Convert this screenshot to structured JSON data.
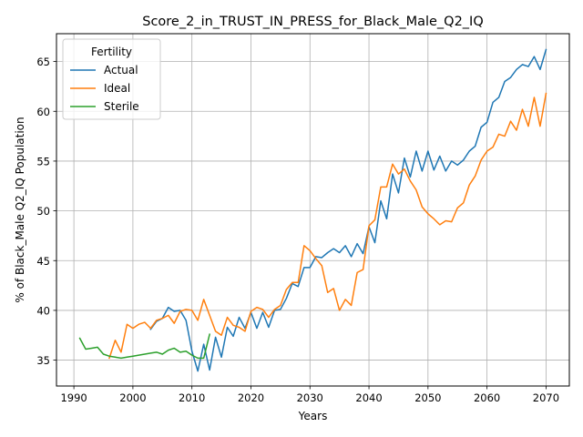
{
  "chart_data": {
    "type": "line",
    "title": "Score_2_in_TRUST_IN_PRESS_for_Black_Male_Q2_IQ",
    "xlabel": "Years",
    "ylabel": "% of Black_Male Q2_IQ Population",
    "xlim": [
      1987.05,
      2073.95
    ],
    "ylim": [
      32.4,
      67.8
    ],
    "xticks": [
      1990,
      2000,
      2010,
      2020,
      2030,
      2040,
      2050,
      2060,
      2070
    ],
    "yticks": [
      35,
      40,
      45,
      50,
      55,
      60,
      65
    ],
    "grid": true,
    "legend": {
      "title": "Fertility",
      "placement": "upper-left"
    },
    "series": [
      {
        "name": "Actual",
        "color": "#1f77b4",
        "x": [
          2003,
          2004,
          2005,
          2006,
          2007,
          2008,
          2009,
          2010,
          2011,
          2012,
          2013,
          2014,
          2015,
          2016,
          2017,
          2018,
          2019,
          2020,
          2021,
          2022,
          2023,
          2024,
          2025,
          2026,
          2027,
          2028,
          2029,
          2030,
          2031,
          2032,
          2033,
          2034,
          2035,
          2036,
          2037,
          2038,
          2039,
          2040,
          2041,
          2042,
          2043,
          2044,
          2045,
          2046,
          2047,
          2048,
          2049,
          2050,
          2051,
          2052,
          2053,
          2054,
          2055,
          2056,
          2057,
          2058,
          2059,
          2060,
          2061,
          2062,
          2063,
          2064,
          2065,
          2066,
          2067,
          2068,
          2069,
          2070
        ],
        "y": [
          38.1,
          38.9,
          39.2,
          40.3,
          39.9,
          40.0,
          39.0,
          35.9,
          33.9,
          36.6,
          34.0,
          37.3,
          35.3,
          38.3,
          37.4,
          39.3,
          38.2,
          39.8,
          38.2,
          39.8,
          38.3,
          40.0,
          40.1,
          41.2,
          42.7,
          42.4,
          44.3,
          44.3,
          45.4,
          45.3,
          45.8,
          46.2,
          45.8,
          46.5,
          45.4,
          46.7,
          45.7,
          48.4,
          46.8,
          51.0,
          49.2,
          53.7,
          51.8,
          55.3,
          53.4,
          56.0,
          54.0,
          56.0,
          54.1,
          55.5,
          54.0,
          55.0,
          54.6,
          55.1,
          56.0,
          56.5,
          58.4,
          58.9,
          60.9,
          61.4,
          63.0,
          63.4,
          64.2,
          64.7,
          64.5,
          65.5,
          64.2,
          66.2
        ]
      },
      {
        "name": "Ideal",
        "color": "#ff7f0e",
        "x": [
          1996,
          1997,
          1998,
          1999,
          2000,
          2001,
          2002,
          2003,
          2004,
          2005,
          2006,
          2007,
          2008,
          2009,
          2010,
          2011,
          2012,
          2013,
          2014,
          2015,
          2016,
          2017,
          2018,
          2019,
          2020,
          2021,
          2022,
          2023,
          2024,
          2025,
          2026,
          2027,
          2028,
          2029,
          2030,
          2031,
          2032,
          2033,
          2034,
          2035,
          2036,
          2037,
          2038,
          2039,
          2040,
          2041,
          2042,
          2043,
          2044,
          2045,
          2046,
          2047,
          2048,
          2049,
          2050,
          2051,
          2052,
          2053,
          2054,
          2055,
          2056,
          2057,
          2058,
          2059,
          2060,
          2061,
          2062,
          2063,
          2064,
          2065,
          2066,
          2067,
          2068,
          2069,
          2070
        ],
        "y": [
          35.2,
          37.0,
          35.8,
          38.6,
          38.2,
          38.6,
          38.8,
          38.2,
          39.0,
          39.2,
          39.5,
          38.7,
          39.9,
          40.1,
          40.0,
          39.0,
          41.1,
          39.5,
          37.9,
          37.5,
          39.3,
          38.5,
          38.3,
          37.9,
          39.9,
          40.3,
          40.1,
          39.3,
          40.1,
          40.5,
          42.1,
          42.8,
          42.8,
          46.5,
          46.0,
          45.2,
          44.5,
          41.8,
          42.2,
          40.0,
          41.1,
          40.5,
          43.8,
          44.1,
          48.5,
          49.1,
          52.4,
          52.4,
          54.7,
          53.7,
          54.2,
          53.0,
          52.1,
          50.4,
          49.7,
          49.2,
          48.6,
          49.0,
          48.9,
          50.3,
          50.8,
          52.6,
          53.5,
          55.1,
          56.0,
          56.4,
          57.7,
          57.5,
          59.0,
          58.1,
          60.2,
          58.5,
          61.4,
          58.5,
          61.8
        ]
      },
      {
        "name": "Sterile",
        "color": "#2ca02c",
        "x": [
          1991,
          1992,
          1993,
          1994,
          1995,
          1996,
          1997,
          1998,
          1999,
          2000,
          2001,
          2002,
          2003,
          2004,
          2005,
          2006,
          2007,
          2008,
          2009,
          2010,
          2011,
          2012,
          2013
        ],
        "y": [
          37.2,
          36.1,
          36.2,
          36.3,
          35.6,
          35.4,
          35.3,
          35.2,
          35.3,
          35.4,
          35.5,
          35.6,
          35.7,
          35.8,
          35.6,
          36.0,
          36.2,
          35.8,
          35.9,
          35.5,
          35.2,
          35.2,
          37.6
        ]
      }
    ]
  }
}
